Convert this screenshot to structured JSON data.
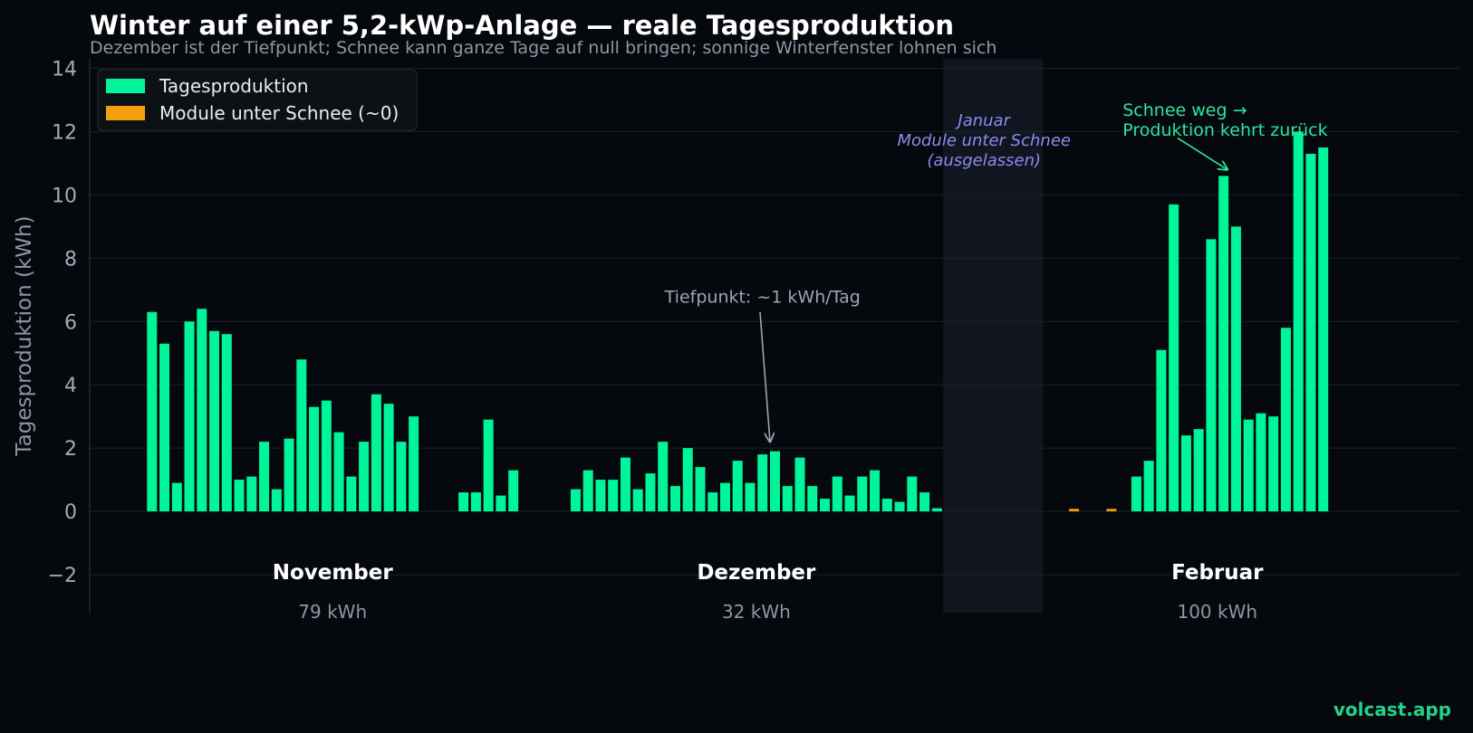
{
  "chart_data": {
    "type": "bar",
    "title": "Winter auf einer 5,2-kWp-Anlage — reale Tagesproduktion",
    "subtitle": "Dezember ist der Tiefpunkt; Schnee kann ganze Tage auf null bringen; sonnige Winterfenster lohnen sich",
    "ylabel": "Tagesproduktion (kWh)",
    "ylim": [
      -3.2,
      14.3
    ],
    "yticks": [
      -2,
      0,
      2,
      4,
      6,
      8,
      10,
      12,
      14
    ],
    "ytick_labels": [
      "−2",
      "0",
      "2",
      "4",
      "6",
      "8",
      "10",
      "12",
      "14"
    ],
    "grid": true,
    "legend_position": "top-left",
    "legend": [
      {
        "label": "Tagesproduktion",
        "color": "#00f59b"
      },
      {
        "label": "Module unter Schnee (~0)",
        "color": "#f59e0b"
      }
    ],
    "colors": {
      "production": "#00f59b",
      "snow": "#f59e0b",
      "gap_band": "#10151f",
      "gap_label": "#8b8cf0",
      "annotation_green": "#2ee59d",
      "annotation_gray": "#9aa7b6"
    },
    "series": [
      {
        "name": "Tagesproduktion",
        "days": [
          [
            1,
            6.3
          ],
          [
            2,
            5.3
          ],
          [
            3,
            0.9
          ],
          [
            4,
            6.0
          ],
          [
            5,
            6.4
          ],
          [
            6,
            5.7
          ],
          [
            7,
            5.6
          ],
          [
            8,
            1.0
          ],
          [
            9,
            1.1
          ],
          [
            10,
            2.2
          ],
          [
            11,
            0.7
          ],
          [
            12,
            2.3
          ],
          [
            13,
            4.8
          ],
          [
            14,
            3.3
          ],
          [
            15,
            3.5
          ],
          [
            16,
            2.5
          ],
          [
            17,
            1.1
          ],
          [
            18,
            2.2
          ],
          [
            19,
            3.7
          ],
          [
            20,
            3.4
          ],
          [
            21,
            2.2
          ],
          [
            22,
            3.0
          ],
          [
            26,
            0.6
          ],
          [
            27,
            0.6
          ],
          [
            28,
            2.9
          ],
          [
            29,
            0.5
          ],
          [
            30,
            1.3
          ],
          [
            35,
            0.7
          ],
          [
            36,
            1.3
          ],
          [
            37,
            1.0
          ],
          [
            38,
            1.0
          ],
          [
            39,
            1.7
          ],
          [
            40,
            0.7
          ],
          [
            41,
            1.2
          ],
          [
            42,
            2.2
          ],
          [
            43,
            0.8
          ],
          [
            44,
            2.0
          ],
          [
            45,
            1.4
          ],
          [
            46,
            0.6
          ],
          [
            47,
            0.9
          ],
          [
            48,
            1.6
          ],
          [
            49,
            0.9
          ],
          [
            50,
            1.8
          ],
          [
            51,
            1.9
          ],
          [
            52,
            0.8
          ],
          [
            53,
            1.7
          ],
          [
            54,
            0.8
          ],
          [
            55,
            0.4
          ],
          [
            56,
            1.1
          ],
          [
            57,
            0.5
          ],
          [
            58,
            1.1
          ],
          [
            59,
            1.3
          ],
          [
            60,
            0.4
          ],
          [
            61,
            0.3
          ],
          [
            62,
            1.1
          ],
          [
            63,
            0.6
          ],
          [
            64,
            0.1
          ],
          [
            80,
            1.1
          ],
          [
            81,
            1.6
          ],
          [
            82,
            5.1
          ],
          [
            83,
            9.7
          ],
          [
            84,
            2.4
          ],
          [
            85,
            2.6
          ],
          [
            86,
            8.6
          ],
          [
            87,
            10.6
          ],
          [
            88,
            9.0
          ],
          [
            89,
            2.9
          ],
          [
            90,
            3.1
          ],
          [
            91,
            3.0
          ],
          [
            92,
            5.8
          ],
          [
            93,
            12.0
          ],
          [
            94,
            11.3
          ],
          [
            95,
            11.5
          ]
        ]
      },
      {
        "name": "Module unter Schnee (~0)",
        "days": [
          [
            75,
            0.08
          ],
          [
            78,
            0.08
          ]
        ]
      }
    ],
    "day_range": [
      -4,
      106
    ],
    "months": [
      {
        "name": "November",
        "total": "79 kWh",
        "center_day": 15.5
      },
      {
        "name": "Dezember",
        "total": "32 kWh",
        "center_day": 49.5
      },
      {
        "name": "Februar",
        "total": "100 kWh",
        "center_day": 86.5
      }
    ],
    "gap": {
      "start_day": 64.5,
      "end_day": 72.5,
      "label_lines": [
        "Januar",
        "Module unter Schnee",
        "(ausgelassen)"
      ]
    },
    "annotations": [
      {
        "id": "tiefpunkt",
        "text_lines": [
          "Tiefpunkt: ~1 kWh/Tag"
        ],
        "text_day": 50.0,
        "text_y": 6.6,
        "arrow_from": [
          49.8,
          6.3
        ],
        "arrow_to": [
          50.6,
          2.2
        ],
        "color": "annotation_gray"
      },
      {
        "id": "schnee-weg",
        "text_lines": [
          "Schnee weg →",
          "Produktion kehrt zurück"
        ],
        "text_day": 78.9,
        "text_y": 12.5,
        "arrow_from": [
          83.3,
          11.8
        ],
        "arrow_to": [
          87.3,
          10.8
        ],
        "color": "annotation_green"
      }
    ]
  },
  "footer": {
    "brand": "volcast.app"
  }
}
